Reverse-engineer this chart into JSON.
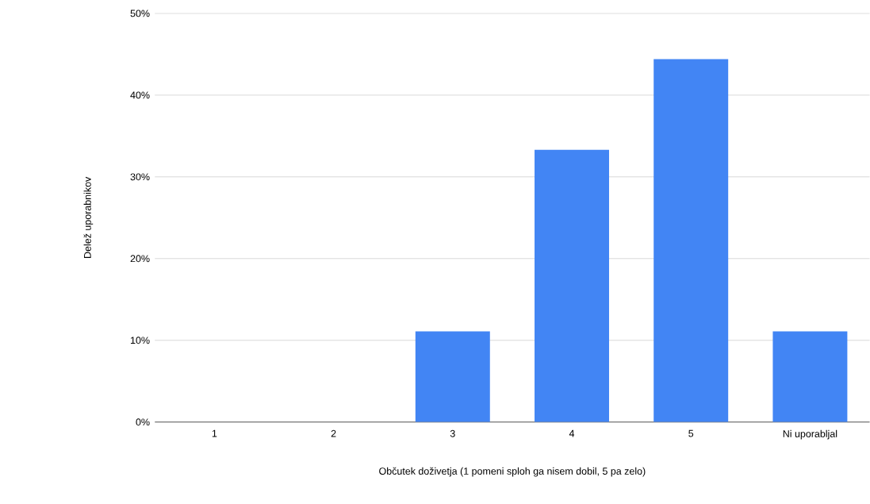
{
  "chart_data": {
    "type": "bar",
    "xlabel": "Občutek doživetja (1 pomeni sploh ga nisem dobil, 5 pa zelo)",
    "ylabel": "Delež uporabnikov",
    "categories": [
      "1",
      "2",
      "3",
      "4",
      "5",
      "Ni uporabljal"
    ],
    "values": [
      0,
      0,
      11.1,
      33.3,
      44.4,
      11.1
    ],
    "color": "#4285f4",
    "ylim": [
      0,
      50
    ],
    "yticks": [
      {
        "value": 0,
        "label": "0%"
      },
      {
        "value": 10,
        "label": "10%"
      },
      {
        "value": 20,
        "label": "20%"
      },
      {
        "value": 30,
        "label": "30%"
      },
      {
        "value": 40,
        "label": "40%"
      },
      {
        "value": 50,
        "label": "50%"
      }
    ],
    "grid": "y"
  }
}
